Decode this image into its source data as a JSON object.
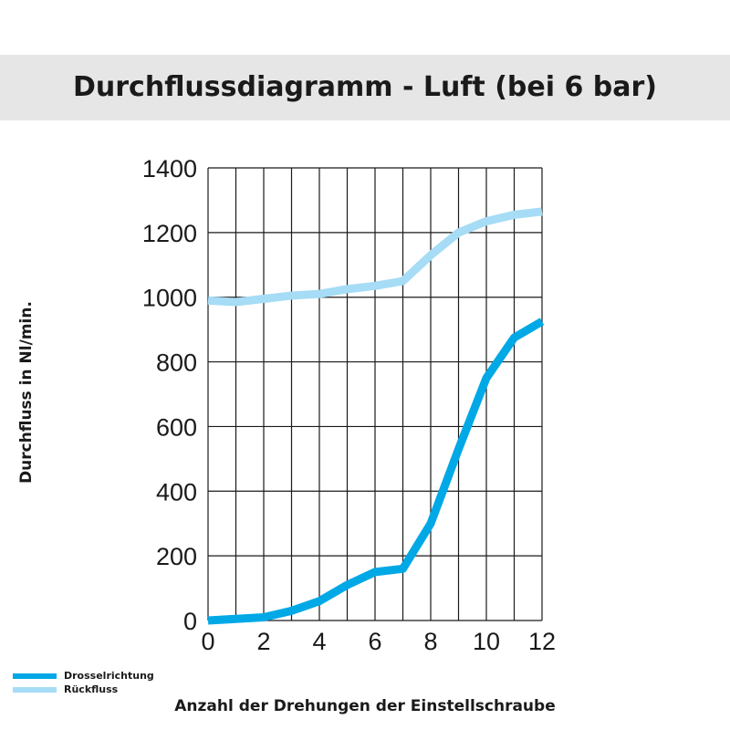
{
  "chart_data": {
    "type": "line",
    "title": "Durchflussdiagramm - Luft (bei 6 bar)",
    "xlabel": "Anzahl der Drehungen der Einstellschraube",
    "ylabel": "Durchfluss in Nl/min.",
    "xlim": [
      0,
      12
    ],
    "ylim": [
      0,
      1400
    ],
    "x_ticks": [
      0,
      2,
      4,
      6,
      8,
      10,
      12
    ],
    "y_ticks": [
      0,
      200,
      400,
      600,
      800,
      1000,
      1200,
      1400
    ],
    "grid": true,
    "legend_position": "bottom-left",
    "x": [
      0,
      1,
      2,
      3,
      4,
      5,
      6,
      7,
      8,
      9,
      10,
      11,
      12
    ],
    "series": [
      {
        "name": "Drosselrichtung",
        "color": "#00a8e6",
        "values": [
          0,
          5,
          10,
          30,
          60,
          110,
          150,
          160,
          300,
          530,
          750,
          875,
          925
        ]
      },
      {
        "name": "Rückfluss",
        "color": "#a6dcf5",
        "values": [
          990,
          985,
          995,
          1005,
          1010,
          1025,
          1035,
          1050,
          1130,
          1200,
          1235,
          1255,
          1265
        ]
      }
    ]
  }
}
